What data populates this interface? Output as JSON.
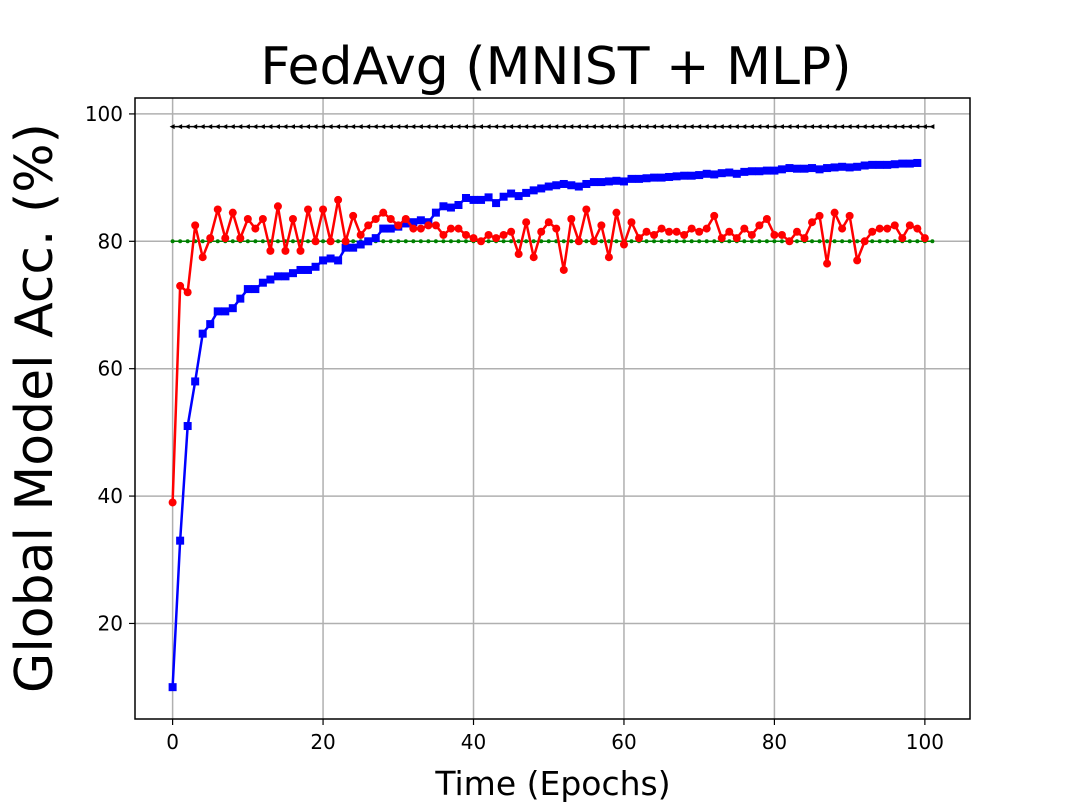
{
  "chart_data": {
    "type": "line",
    "title": "FedAvg (MNIST + MLP)",
    "xlabel": "Time (Epochs)",
    "ylabel": "Global Model Acc. (%)",
    "xlim": [
      -5,
      106
    ],
    "ylim": [
      5,
      102.5
    ],
    "xticks": [
      0,
      20,
      40,
      60,
      80,
      100
    ],
    "yticks": [
      20,
      40,
      60,
      80,
      100
    ],
    "grid": true,
    "legend": "none",
    "series": [
      {
        "name": "upper-reference",
        "color": "#000000",
        "marker": "triangle-left",
        "x_start": 0,
        "x_end": 101,
        "x_step": 1,
        "constant": 98
      },
      {
        "name": "threshold",
        "color": "#008000",
        "marker": "circle-small",
        "x_start": 0,
        "x_end": 101,
        "x_step": 1,
        "constant": 80
      },
      {
        "name": "fedavg-blue",
        "color": "#0000ff",
        "marker": "square",
        "x_start": 0,
        "x_step": 1,
        "values": [
          10,
          33,
          51,
          58,
          65.5,
          67,
          69,
          69,
          69.5,
          71,
          72.5,
          72.5,
          73.5,
          74,
          74.5,
          74.5,
          75,
          75.5,
          75.5,
          76,
          77,
          77.3,
          77,
          79,
          79,
          79.5,
          80,
          80.5,
          82,
          82,
          82.3,
          82.8,
          83,
          83.3,
          83,
          84.5,
          85.5,
          85.3,
          85.7,
          86.8,
          86.5,
          86.5,
          86.9,
          86,
          87,
          87.5,
          87.1,
          87.6,
          88,
          88.3,
          88.6,
          88.8,
          89,
          88.8,
          88.6,
          89,
          89.3,
          89.3,
          89.4,
          89.5,
          89.4,
          89.8,
          89.8,
          89.9,
          90,
          90,
          90.1,
          90.2,
          90.3,
          90.3,
          90.4,
          90.6,
          90.5,
          90.7,
          90.8,
          90.6,
          90.9,
          91,
          91,
          91.1,
          91.1,
          91.3,
          91.5,
          91.4,
          91.4,
          91.5,
          91.3,
          91.5,
          91.6,
          91.7,
          91.6,
          91.7,
          91.9,
          92,
          92,
          92,
          92.1,
          92.2,
          92.2,
          92.3
        ]
      },
      {
        "name": "fedavg-red",
        "color": "#ff0000",
        "marker": "circle",
        "x_start": 0,
        "x_step": 1,
        "values": [
          39,
          73,
          72,
          82.5,
          77.5,
          80.5,
          85,
          80.5,
          84.5,
          80.5,
          83.5,
          82,
          83.5,
          78.5,
          85.5,
          78.5,
          83.5,
          78.5,
          85,
          80,
          85,
          80,
          86.5,
          80,
          84,
          81,
          82.5,
          83.5,
          84.5,
          83.5,
          82.5,
          83.5,
          82,
          82,
          82.5,
          82.5,
          81,
          82,
          82,
          81,
          80.5,
          80,
          81,
          80.5,
          81,
          81.5,
          78,
          83,
          77.5,
          81.5,
          83,
          82,
          75.5,
          83.5,
          80,
          85,
          80,
          82.5,
          77.5,
          84.5,
          79.5,
          83,
          80.5,
          81.5,
          81,
          82,
          81.5,
          81.5,
          81,
          82,
          81.5,
          82,
          84,
          80.5,
          81.5,
          80.5,
          82,
          81,
          82.5,
          83.5,
          81,
          81,
          80,
          81.5,
          80.5,
          83,
          84,
          76.5,
          84.5,
          82,
          84,
          77,
          80,
          81.5,
          82,
          82,
          82.5,
          80.5,
          82.5,
          82,
          80.5
        ]
      }
    ]
  }
}
